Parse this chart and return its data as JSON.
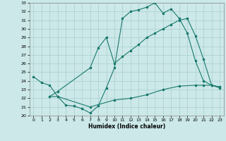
{
  "xlabel": "Humidex (Indice chaleur)",
  "xlim": [
    -0.5,
    23.5
  ],
  "ylim": [
    20,
    33
  ],
  "xticks": [
    0,
    1,
    2,
    3,
    4,
    5,
    6,
    7,
    8,
    9,
    10,
    11,
    12,
    13,
    14,
    15,
    16,
    17,
    18,
    19,
    20,
    21,
    22,
    23
  ],
  "yticks": [
    20,
    21,
    22,
    23,
    24,
    25,
    26,
    27,
    28,
    29,
    30,
    31,
    32,
    33
  ],
  "bg_color": "#cce8e8",
  "line_color": "#1a7a6e",
  "grid_color": "#aacfcf",
  "line1_x": [
    0,
    1,
    2,
    3,
    4,
    5,
    6,
    7,
    8,
    9,
    10,
    11,
    12,
    13,
    14,
    15,
    16,
    17,
    18,
    19,
    20,
    21,
    22,
    23
  ],
  "line1_y": [
    24.5,
    23.8,
    23.5,
    22.2,
    21.2,
    21.1,
    20.8,
    20.3,
    21.1,
    23.2,
    25.5,
    31.2,
    32.0,
    32.2,
    32.5,
    33.0,
    31.8,
    32.3,
    31.2,
    29.5,
    26.3,
    24.0,
    23.5,
    23.3
  ],
  "line2_x": [
    2,
    3,
    7,
    8,
    9,
    10,
    11,
    12,
    13,
    14,
    15,
    16,
    17,
    18,
    19,
    20,
    21,
    22,
    23
  ],
  "line2_y": [
    22.2,
    22.8,
    25.5,
    27.8,
    29.0,
    26.0,
    26.8,
    27.5,
    28.2,
    29.0,
    29.5,
    30.0,
    30.5,
    31.0,
    31.2,
    29.2,
    26.5,
    23.5,
    23.2
  ],
  "line3_x": [
    2,
    3,
    7,
    10,
    12,
    14,
    16,
    18,
    20,
    21,
    22,
    23
  ],
  "line3_y": [
    22.2,
    22.2,
    21.0,
    21.8,
    22.0,
    22.4,
    23.0,
    23.4,
    23.5,
    23.5,
    23.5,
    23.3
  ]
}
